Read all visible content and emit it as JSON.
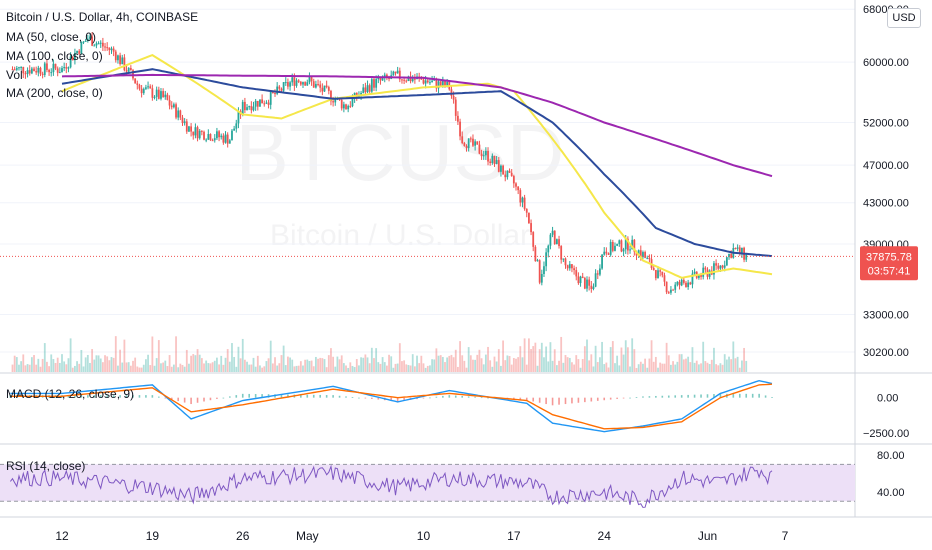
{
  "title": "Bitcoin / U.S. Dollar, 4h, COINBASE",
  "indicators": {
    "ma50": "MA (50, close, 0)",
    "ma100": "MA (100, close, 0)",
    "vol": "Vol",
    "ma200": "MA (200, close, 0)",
    "macd": "MACD (12, 26, close, 9)",
    "rsi": "RSI (14, close)"
  },
  "currency_button": "USD",
  "watermark": "BTCUSD",
  "watermark_sub": "Bitcoin / U.S. Dollar",
  "price_label": {
    "price": "37875.78",
    "countdown": "03:57:41"
  },
  "colors": {
    "up": "#26a69a",
    "down": "#ef5350",
    "ma50": "#f5e74a",
    "ma100": "#2c4b9c",
    "ma200": "#9c27b0",
    "macd": "#2196f3",
    "signal": "#ff6d00",
    "rsi": "#7e57c2",
    "rsi_band": "#ede0f7"
  },
  "chart_data": [
    {
      "type": "candlestick",
      "title": "Bitcoin / U.S. Dollar, 4h, COINBASE",
      "x_ticks": [
        "12",
        "19",
        "26",
        "May",
        "10",
        "17",
        "24",
        "Jun",
        "7"
      ],
      "y_ticks": [
        68000,
        60000,
        52000,
        47000,
        43000,
        39000,
        33000,
        30200
      ],
      "y_scale": "log",
      "current_price": 37875.78,
      "anchor_closes": [
        [
          "12",
          59000
        ],
        [
          "14",
          63500
        ],
        [
          "16",
          61500
        ],
        [
          "18",
          56500
        ],
        [
          "20",
          55000
        ],
        [
          "22",
          51000
        ],
        [
          "25",
          50000
        ],
        [
          "26",
          54000
        ],
        [
          "28",
          55000
        ],
        [
          "30",
          57500
        ],
        [
          "May",
          57500
        ],
        [
          "4",
          54000
        ],
        [
          "6",
          57000
        ],
        [
          "8",
          58000
        ],
        [
          "10",
          57500
        ],
        [
          "12",
          56500
        ],
        [
          "13",
          50000
        ],
        [
          "15",
          48000
        ],
        [
          "17",
          45000
        ],
        [
          "18",
          42000
        ],
        [
          "19",
          36000
        ],
        [
          "20",
          40000
        ],
        [
          "21",
          37000
        ],
        [
          "23",
          35000
        ],
        [
          "24",
          38500
        ],
        [
          "26",
          39000
        ],
        [
          "27",
          38000
        ],
        [
          "28",
          36500
        ],
        [
          "29",
          35000
        ],
        [
          "30",
          35500
        ],
        [
          "Jun",
          36500
        ],
        [
          "2",
          37000
        ],
        [
          "3",
          38500
        ],
        [
          "4",
          37875.78
        ]
      ],
      "moving_averages": [
        {
          "name": "MA (50, close, 0)",
          "values": [
            [
              12,
              56000
            ],
            [
              19,
              61000
            ],
            [
              26,
              53000
            ],
            [
              29,
              52500
            ],
            [
              33,
              55000
            ],
            [
              40,
              56500
            ],
            [
              45,
              57000
            ],
            [
              47,
              56000
            ],
            [
              50,
              50000
            ],
            [
              54,
              42000
            ],
            [
              57,
              37500
            ],
            [
              60,
              36000
            ],
            [
              64,
              36800
            ],
            [
              67,
              36300
            ]
          ]
        },
        {
          "name": "MA (100, close, 0)",
          "values": [
            [
              12,
              57000
            ],
            [
              19,
              59000
            ],
            [
              26,
              56500
            ],
            [
              33,
              55000
            ],
            [
              40,
              55500
            ],
            [
              46,
              56000
            ],
            [
              50,
              52000
            ],
            [
              54,
              46000
            ],
            [
              58,
              40500
            ],
            [
              61,
              39000
            ],
            [
              64,
              38200
            ],
            [
              67,
              37900
            ]
          ]
        },
        {
          "name": "MA (200, close, 0)",
          "values": [
            [
              12,
              58000
            ],
            [
              19,
              58200
            ],
            [
              26,
              58100
            ],
            [
              33,
              58000
            ],
            [
              40,
              57800
            ],
            [
              46,
              56500
            ],
            [
              50,
              54500
            ],
            [
              54,
              52000
            ],
            [
              58,
              50000
            ],
            [
              61,
              48500
            ],
            [
              64,
              47000
            ],
            [
              67,
              45800
            ]
          ]
        }
      ]
    },
    {
      "type": "line",
      "title": "MACD (12, 26, close, 9)",
      "y_ticks": [
        0.0,
        -2500.0
      ],
      "y_tick_labels": [
        "0.00",
        "−2500.00"
      ],
      "series": [
        {
          "name": "MACD",
          "values": [
            [
              12,
              300
            ],
            [
              19,
              900
            ],
            [
              22,
              -1500
            ],
            [
              26,
              -200
            ],
            [
              33,
              800
            ],
            [
              38,
              -300
            ],
            [
              42,
              500
            ],
            [
              48,
              -400
            ],
            [
              50,
              -1800
            ],
            [
              54,
              -2400
            ],
            [
              57,
              -2000
            ],
            [
              60,
              -1500
            ],
            [
              63,
              300
            ],
            [
              66,
              1200
            ],
            [
              67,
              1000
            ]
          ]
        },
        {
          "name": "Signal",
          "values": [
            [
              12,
              100
            ],
            [
              19,
              700
            ],
            [
              22,
              -1000
            ],
            [
              26,
              -500
            ],
            [
              33,
              600
            ],
            [
              38,
              0
            ],
            [
              42,
              300
            ],
            [
              48,
              -200
            ],
            [
              50,
              -1200
            ],
            [
              54,
              -2200
            ],
            [
              57,
              -2100
            ],
            [
              60,
              -1700
            ],
            [
              63,
              0
            ],
            [
              66,
              900
            ],
            [
              67,
              950
            ]
          ]
        }
      ]
    },
    {
      "type": "line",
      "title": "RSI (14, close)",
      "y_ticks": [
        80.0,
        40.0
      ],
      "y_tick_labels": [
        "80.00",
        "40.00"
      ],
      "band": [
        30,
        70
      ],
      "series": [
        {
          "name": "RSI",
          "values": [
            [
              12,
              55
            ],
            [
              19,
              45
            ],
            [
              22,
              35
            ],
            [
              26,
              55
            ],
            [
              33,
              60
            ],
            [
              38,
              45
            ],
            [
              42,
              55
            ],
            [
              48,
              50
            ],
            [
              50,
              35
            ],
            [
              54,
              40
            ],
            [
              57,
              30
            ],
            [
              60,
              55
            ],
            [
              63,
              50
            ],
            [
              66,
              65
            ],
            [
              67,
              55
            ]
          ]
        }
      ]
    }
  ]
}
